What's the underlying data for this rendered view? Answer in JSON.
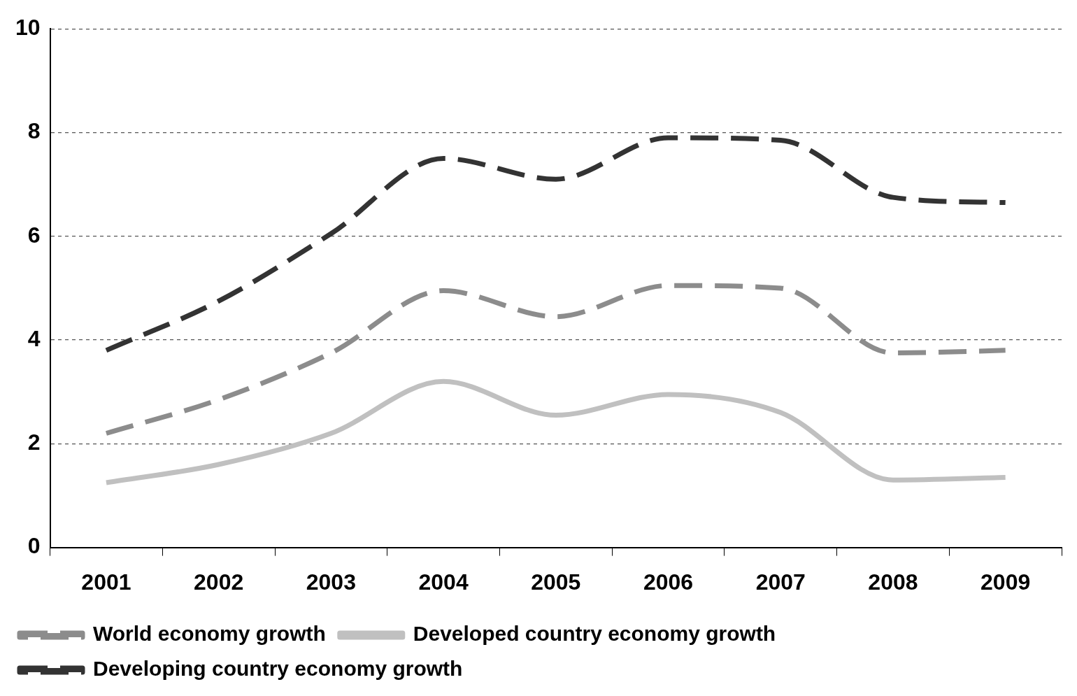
{
  "chart_data": {
    "type": "line",
    "categories": [
      "2001",
      "2002",
      "2003",
      "2004",
      "2005",
      "2006",
      "2007",
      "2008",
      "2009"
    ],
    "series": [
      {
        "name": "World economy growth",
        "color": "#8c8c8c",
        "line_style": "dashed",
        "values": [
          2.2,
          2.85,
          3.75,
          4.95,
          4.45,
          5.05,
          5.0,
          3.75,
          3.8
        ]
      },
      {
        "name": "Developed country economy growth",
        "color": "#c0c0c0",
        "line_style": "solid",
        "values": [
          1.25,
          1.6,
          2.2,
          3.2,
          2.55,
          2.95,
          2.6,
          1.3,
          1.35
        ]
      },
      {
        "name": "Developing country economy growth",
        "color": "#333333",
        "line_style": "dashed",
        "values": [
          3.8,
          4.75,
          6.05,
          7.5,
          7.1,
          7.9,
          7.85,
          6.75,
          6.65
        ]
      }
    ],
    "ylim": [
      0,
      10
    ],
    "yticks": [
      0,
      2,
      4,
      6,
      8,
      10
    ],
    "grid": "y",
    "legend": "bottom",
    "marker": "none"
  }
}
